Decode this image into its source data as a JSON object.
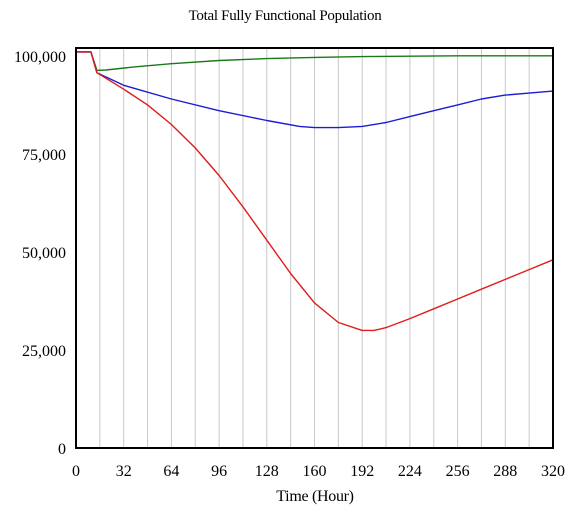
{
  "chart_data": {
    "type": "line",
    "title": "Total Fully Functional Population",
    "xlabel": "Time (Hour)",
    "ylabel": "",
    "xlim": [
      0,
      320
    ],
    "ylim": [
      0,
      100000
    ],
    "xticks": [
      0,
      32,
      64,
      96,
      128,
      160,
      192,
      224,
      256,
      288,
      320
    ],
    "xtick_labels": [
      "0",
      "32",
      "64",
      "96",
      "128",
      "160",
      "192",
      "224",
      "256",
      "288",
      "320"
    ],
    "yticks": [
      0,
      25000,
      50000,
      75000,
      100000
    ],
    "ytick_labels": [
      "0",
      "25,000",
      "50,000",
      "75,000",
      "100,000"
    ],
    "grid": {
      "vertical": true,
      "horizontal": false,
      "spacing": 16
    },
    "legend": "none",
    "series": [
      {
        "color": "#1a7a1a",
        "x": [
          0,
          10,
          14,
          20,
          40,
          64,
          96,
          128,
          160,
          192,
          224,
          256,
          288,
          320
        ],
        "y": [
          101000,
          101000,
          96300,
          96400,
          97200,
          98000,
          98800,
          99300,
          99600,
          99800,
          99900,
          100000,
          100000,
          100000
        ]
      },
      {
        "color": "#1c1cd4",
        "x": [
          0,
          10,
          14,
          32,
          64,
          96,
          128,
          150,
          160,
          176,
          192,
          208,
          224,
          240,
          256,
          272,
          288,
          304,
          320
        ],
        "y": [
          101000,
          101000,
          95700,
          92500,
          89000,
          86000,
          83500,
          82000,
          81700,
          81700,
          82000,
          83000,
          84500,
          86000,
          87500,
          89000,
          90000,
          90500,
          91000
        ]
      },
      {
        "color": "#e11b1b",
        "x": [
          0,
          10,
          14,
          32,
          48,
          64,
          80,
          96,
          112,
          128,
          144,
          160,
          176,
          192,
          200,
          208,
          224,
          240,
          256,
          272,
          288,
          304,
          320
        ],
        "y": [
          101000,
          101000,
          95700,
          91500,
          87500,
          82500,
          76500,
          69500,
          61500,
          53000,
          44500,
          37000,
          32000,
          30000,
          30000,
          30700,
          33000,
          35500,
          38000,
          40500,
          43000,
          45500,
          48000
        ]
      }
    ]
  }
}
